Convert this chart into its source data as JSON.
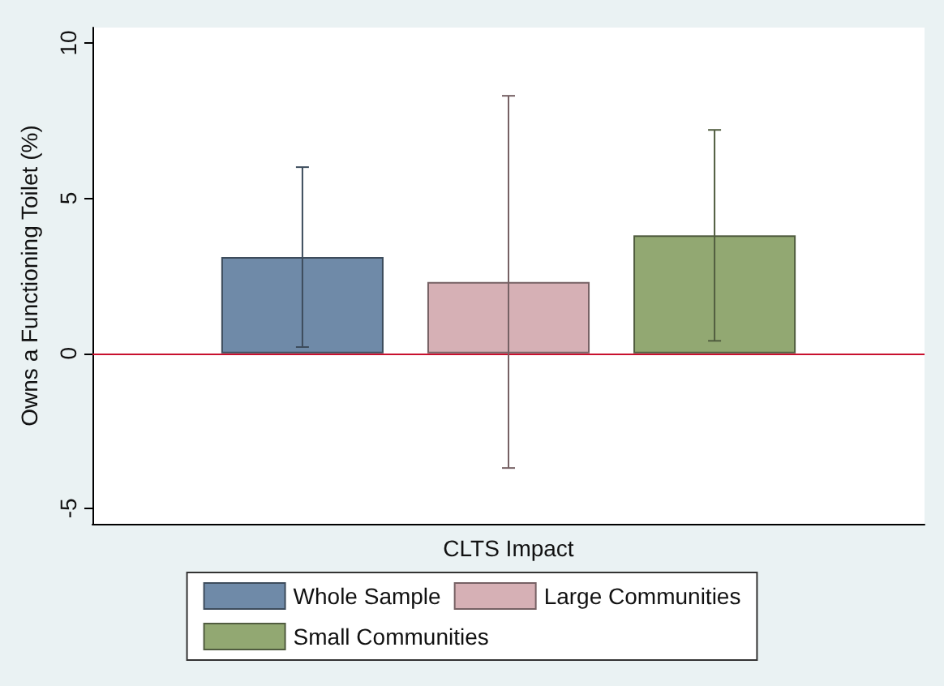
{
  "chart_data": {
    "type": "bar",
    "ylabel": "Owns a Functioning Toilet (%)",
    "categories": [
      "CLTS Impact"
    ],
    "series": [
      {
        "name": "Whole Sample",
        "color": "#6f8aa8",
        "values": [
          3.1
        ],
        "errors": [
          [
            0.2,
            6.0
          ]
        ]
      },
      {
        "name": "Large Communities",
        "color": "#d6b0b5",
        "values": [
          2.3
        ],
        "errors": [
          [
            -3.7,
            8.3
          ]
        ]
      },
      {
        "name": "Small Communities",
        "color": "#92a872",
        "values": [
          3.8
        ],
        "errors": [
          [
            0.4,
            7.2
          ]
        ]
      }
    ],
    "ylim": [
      -5.5,
      10.5
    ],
    "yticks": [
      -5,
      0,
      5,
      10
    ],
    "grid": false,
    "legend": "bottom",
    "ref_lines": [
      {
        "axis": "y",
        "value": 0,
        "color": "#c8102e"
      }
    ]
  }
}
